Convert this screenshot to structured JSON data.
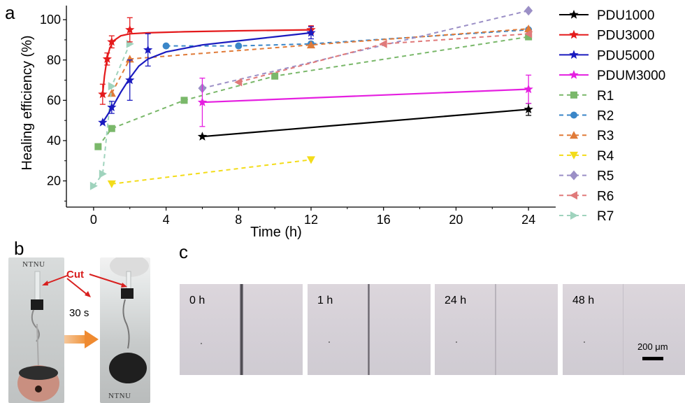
{
  "panels": {
    "a": "a",
    "b": "b",
    "c": "c"
  },
  "chart_data": {
    "type": "line",
    "title": "",
    "xlabel": "Time (h)",
    "ylabel": "Healing efficiency (%)",
    "xlim": [
      -1.5,
      25.5
    ],
    "ylim": [
      7,
      107
    ],
    "xticks": [
      0,
      4,
      8,
      12,
      16,
      20,
      24
    ],
    "yticks": [
      20,
      40,
      60,
      80,
      100
    ],
    "legend_position": "right",
    "series": [
      {
        "name": "PDU1000",
        "color": "#000000",
        "marker": "star",
        "style": "solid",
        "connect": "line",
        "points": [
          [
            6,
            42
          ],
          [
            24,
            55.5
          ]
        ],
        "errors": [
          null,
          3
        ]
      },
      {
        "name": "PDU3000",
        "color": "#e41a1c",
        "marker": "star",
        "style": "solid",
        "connect": "curve",
        "points": [
          [
            0.5,
            63
          ],
          [
            0.75,
            80.5
          ],
          [
            1,
            89
          ],
          [
            2,
            95
          ],
          [
            12,
            95
          ]
        ],
        "errors": [
          5,
          3,
          3,
          6,
          2
        ],
        "curve": [
          [
            0.5,
            63
          ],
          [
            0.6,
            72
          ],
          [
            0.75,
            81
          ],
          [
            0.9,
            86
          ],
          [
            1.1,
            89.5
          ],
          [
            1.5,
            92
          ],
          [
            2,
            93
          ],
          [
            3,
            93.5
          ],
          [
            5,
            94
          ],
          [
            8,
            94.5
          ],
          [
            12,
            95
          ]
        ]
      },
      {
        "name": "PDU5000",
        "color": "#1b1bbf",
        "marker": "star",
        "style": "solid",
        "connect": "curve",
        "points": [
          [
            0.5,
            49
          ],
          [
            1,
            56.5
          ],
          [
            2,
            70
          ],
          [
            3,
            85
          ],
          [
            12,
            93.5
          ]
        ],
        "errors": [
          null,
          3,
          10,
          8,
          3
        ],
        "curve": [
          [
            0.5,
            49
          ],
          [
            1,
            56
          ],
          [
            1.5,
            64
          ],
          [
            2,
            71
          ],
          [
            2.5,
            77
          ],
          [
            3,
            80.5
          ],
          [
            4,
            84
          ],
          [
            6,
            87.5
          ],
          [
            8,
            89.5
          ],
          [
            10,
            91.5
          ],
          [
            12,
            93.5
          ]
        ]
      },
      {
        "name": "PDUM3000",
        "color": "#e51fe0",
        "marker": "star",
        "style": "solid",
        "connect": "line",
        "points": [
          [
            6,
            59
          ],
          [
            24,
            65.5
          ]
        ],
        "errors": [
          12,
          7
        ]
      },
      {
        "name": "R1",
        "color": "#7ab86a",
        "marker": "square",
        "style": "dashed",
        "connect": "line",
        "points": [
          [
            0.25,
            37
          ],
          [
            1,
            46
          ],
          [
            5,
            60
          ],
          [
            10,
            72
          ],
          [
            24,
            91.5
          ]
        ],
        "errors": []
      },
      {
        "name": "R2",
        "color": "#3a86c8",
        "marker": "circle",
        "style": "dashed",
        "connect": "line",
        "points": [
          [
            4,
            87
          ],
          [
            8,
            87
          ],
          [
            12,
            88
          ],
          [
            24,
            95
          ]
        ],
        "errors": []
      },
      {
        "name": "R3",
        "color": "#e07b39",
        "marker": "triangle-up",
        "style": "dashed",
        "connect": "line",
        "points": [
          [
            1,
            63.5
          ],
          [
            2,
            80.5
          ],
          [
            12,
            87.5
          ],
          [
            24,
            95.5
          ]
        ],
        "errors": []
      },
      {
        "name": "R4",
        "color": "#f3dc1a",
        "marker": "triangle-down",
        "style": "dashed",
        "connect": "line",
        "points": [
          [
            1,
            18.5
          ],
          [
            12,
            30.5
          ]
        ],
        "errors": []
      },
      {
        "name": "R5",
        "color": "#9b8fc6",
        "marker": "diamond",
        "style": "dashed",
        "connect": "line",
        "points": [
          [
            6,
            66
          ],
          [
            24,
            104.5
          ]
        ],
        "errors": []
      },
      {
        "name": "R6",
        "color": "#e07a7a",
        "marker": "triangle-left",
        "style": "dashed",
        "connect": "line",
        "points": [
          [
            8,
            69
          ],
          [
            16,
            88
          ],
          [
            24,
            93
          ]
        ],
        "errors": []
      },
      {
        "name": "R7",
        "color": "#9fd3bd",
        "marker": "triangle-right",
        "style": "dashed",
        "connect": "line",
        "points": [
          [
            0,
            17.5
          ],
          [
            0.5,
            23.5
          ],
          [
            1,
            67
          ],
          [
            2,
            88
          ]
        ],
        "errors": []
      }
    ]
  },
  "panel_b": {
    "cut_label": "Cut",
    "time_label": "30 s",
    "brand_top": "NTNU",
    "brand_bottom": "NTNU"
  },
  "panel_c": {
    "images": [
      {
        "label": "0 h"
      },
      {
        "label": "1 h"
      },
      {
        "label": "24 h"
      },
      {
        "label": "48 h"
      }
    ],
    "scale_bar_label": "200 μm"
  }
}
